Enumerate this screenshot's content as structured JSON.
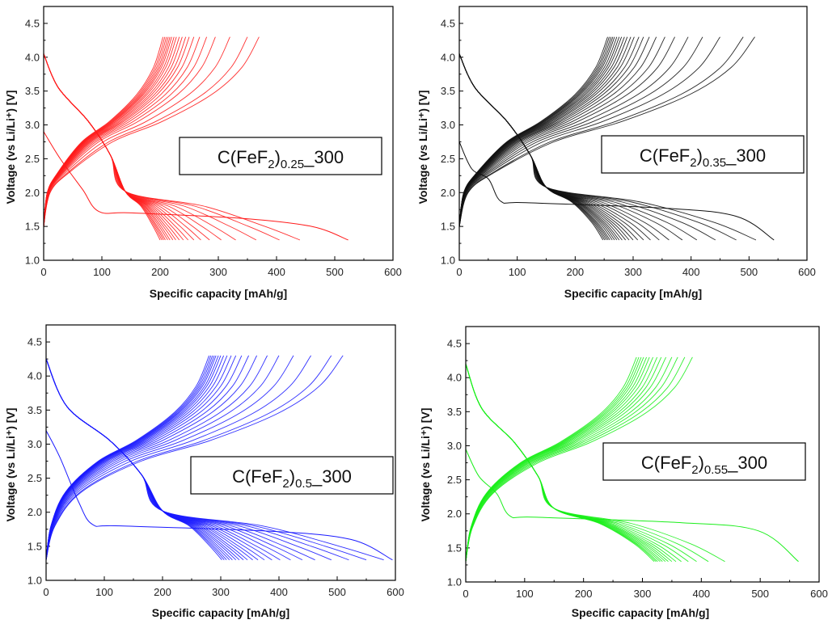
{
  "figure": {
    "description_free": true,
    "panels": [
      {
        "id": "a",
        "sample_label": "C(FeF2)0.25_300",
        "label_main": "C(FeF",
        "label_sub1": "2",
        "label_close": ")",
        "label_sub2": "0.25",
        "label_tail": "_300",
        "color": "#ff1a1a",
        "xlabel": "Specific capacity [mAh/g]",
        "ylabel": "Voltage (vs  Li/Li⁺) [V]",
        "x_ticks": [
          "0",
          "100",
          "200",
          "300",
          "400",
          "500",
          "600"
        ],
        "y_ticks": [
          "1.0",
          "1.5",
          "2.0",
          "2.5",
          "3.0",
          "3.5",
          "4.0",
          "4.5"
        ]
      },
      {
        "id": "b",
        "sample_label": "C(FeF2)0.35_300",
        "label_main": "C(FeF",
        "label_sub1": "2",
        "label_close": ")",
        "label_sub2": "0.35",
        "label_tail": "_300",
        "color": "#111111",
        "xlabel": "Specific capacity [mAh/g]",
        "ylabel": "Voltage (vs  Li/Li⁺) [V]",
        "x_ticks": [
          "0",
          "100",
          "200",
          "300",
          "400",
          "500",
          "600"
        ],
        "y_ticks": [
          "1.0",
          "1.5",
          "2.0",
          "2.5",
          "3.0",
          "3.5",
          "4.0",
          "4.5"
        ]
      },
      {
        "id": "c",
        "sample_label": "C(FeF2)0.5_300",
        "label_main": "C(FeF",
        "label_sub1": "2",
        "label_close": ")",
        "label_sub2": "0.5",
        "label_tail": "_300",
        "color": "#1a1aff",
        "xlabel": "Specific capacity [mAh/g]",
        "ylabel": "Voltage (vs  Li/Li⁺) [V]",
        "x_ticks": [
          "0",
          "100",
          "200",
          "300",
          "400",
          "500",
          "600"
        ],
        "y_ticks": [
          "1.0",
          "1.5",
          "2.0",
          "2.5",
          "3.0",
          "3.5",
          "4.0",
          "4.5"
        ]
      },
      {
        "id": "d",
        "sample_label": "C(FeF2)0.55_300",
        "label_main": "C(FeF",
        "label_sub1": "2",
        "label_close": ")",
        "label_sub2": "0.55",
        "label_tail": "_300",
        "color": "#1aee1a",
        "xlabel": "Specific capacity [mAh/g]",
        "ylabel": "Voltage (vs  Li/Li⁺) [V]",
        "x_ticks": [
          "0",
          "100",
          "200",
          "300",
          "400",
          "500",
          "600"
        ],
        "y_ticks": [
          "1.0",
          "1.5",
          "2.0",
          "2.5",
          "3.0",
          "3.5",
          "4.0",
          "4.5"
        ]
      }
    ]
  },
  "chart_data": [
    {
      "type": "line",
      "panel": "a",
      "title": "C(FeF2)0.25_300",
      "xlabel": "Specific capacity [mAh/g]",
      "ylabel": "Voltage (vs  Li/Li+) [V]",
      "xlim": [
        0,
        600
      ],
      "ylim": [
        1.0,
        4.75
      ],
      "grid": false,
      "color": "#ff1a1a",
      "discharge": {
        "first_cycle": {
          "end_capacity": 523,
          "plateau_voltage": 1.7,
          "plateau_start": 95,
          "start_voltage": 2.9
        },
        "later_end_capacities": [
          440,
          405,
          365,
          330,
          305,
          285,
          270,
          258,
          248,
          240,
          233,
          227,
          222,
          217,
          213,
          209,
          206,
          203,
          200
        ],
        "later_knee": {
          "capacity": 140,
          "voltage": 2.02
        },
        "end_voltage": 1.3,
        "start_voltage": 4.05
      },
      "charge": {
        "end_capacities": [
          370,
          350,
          320,
          295,
          280,
          268,
          258,
          250,
          244,
          238,
          233,
          228,
          224,
          220,
          217,
          214,
          211,
          208,
          205
        ],
        "start_voltage": 1.5,
        "end_voltage": 4.3
      }
    },
    {
      "type": "line",
      "panel": "b",
      "title": "C(FeF2)0.35_300",
      "xlabel": "Specific capacity [mAh/g]",
      "ylabel": "Voltage (vs  Li/Li+) [V]",
      "xlim": [
        0,
        600
      ],
      "ylim": [
        1.0,
        4.75
      ],
      "grid": false,
      "color": "#111111",
      "discharge": {
        "first_cycle": {
          "end_capacity": 543,
          "plateau_voltage": 1.85,
          "plateau_start": 72,
          "start_voltage": 2.75
        },
        "later_end_capacities": [
          512,
          478,
          442,
          410,
          385,
          362,
          345,
          330,
          318,
          308,
          300,
          293,
          287,
          281,
          276,
          272,
          268,
          264,
          260,
          257,
          254,
          251,
          248
        ],
        "later_knee": {
          "capacity": 150,
          "voltage": 2.08
        },
        "end_voltage": 1.3,
        "start_voltage": 4.05
      },
      "charge": {
        "end_capacities": [
          510,
          490,
          450,
          420,
          395,
          372,
          355,
          340,
          328,
          318,
          310,
          302,
          296,
          290,
          285,
          280,
          276,
          272,
          268,
          265,
          262,
          259,
          256
        ],
        "start_voltage": 1.5,
        "end_voltage": 4.3
      }
    },
    {
      "type": "line",
      "panel": "c",
      "title": "C(FeF2)0.5_300",
      "xlabel": "Specific capacity [mAh/g]",
      "ylabel": "Voltage (vs  Li/Li+) [V]",
      "xlim": [
        0,
        600
      ],
      "ylim": [
        1.0,
        4.75
      ],
      "grid": false,
      "color": "#1a1aff",
      "discharge": {
        "first_cycle": {
          "end_capacity": 595,
          "plateau_voltage": 1.8,
          "plateau_start": 80,
          "start_voltage": 3.2
        },
        "later_end_capacities": [
          580,
          550,
          520,
          490,
          462,
          440,
          420,
          402,
          388,
          375,
          364,
          355,
          346,
          339,
          332,
          326,
          320,
          315,
          310,
          306,
          302
        ],
        "later_knee": {
          "capacity": 200,
          "voltage": 2.02
        },
        "end_voltage": 1.3,
        "start_voltage": 4.25
      },
      "charge": {
        "end_capacities": [
          510,
          490,
          455,
          425,
          400,
          380,
          362,
          348,
          336,
          326,
          318,
          311,
          305,
          300,
          296,
          292,
          289,
          286,
          283,
          280
        ],
        "start_voltage": 1.3,
        "end_voltage": 4.3
      }
    },
    {
      "type": "line",
      "panel": "d",
      "title": "C(FeF2)0.55_300",
      "xlabel": "Specific capacity [mAh/g]",
      "ylabel": "Voltage (vs  Li/Li+) [V]",
      "xlim": [
        0,
        600
      ],
      "ylim": [
        1.0,
        4.75
      ],
      "grid": false,
      "color": "#1aee1a",
      "discharge": {
        "first_cycle": {
          "end_capacity": 565,
          "plateau_voltage": 1.95,
          "plateau_start": 75,
          "start_voltage": 2.95
        },
        "later_end_capacities": [
          440,
          412,
          392,
          378,
          366,
          357,
          350,
          344,
          339,
          334,
          330,
          326,
          323,
          320
        ],
        "later_knee": {
          "capacity": 150,
          "voltage": 2.08
        },
        "end_voltage": 1.3,
        "start_voltage": 4.2
      },
      "charge": {
        "end_capacities": [
          385,
          372,
          360,
          350,
          340,
          332,
          325,
          318,
          312,
          307,
          302,
          298,
          294,
          290
        ],
        "start_voltage": 1.3,
        "end_voltage": 4.3
      }
    }
  ]
}
